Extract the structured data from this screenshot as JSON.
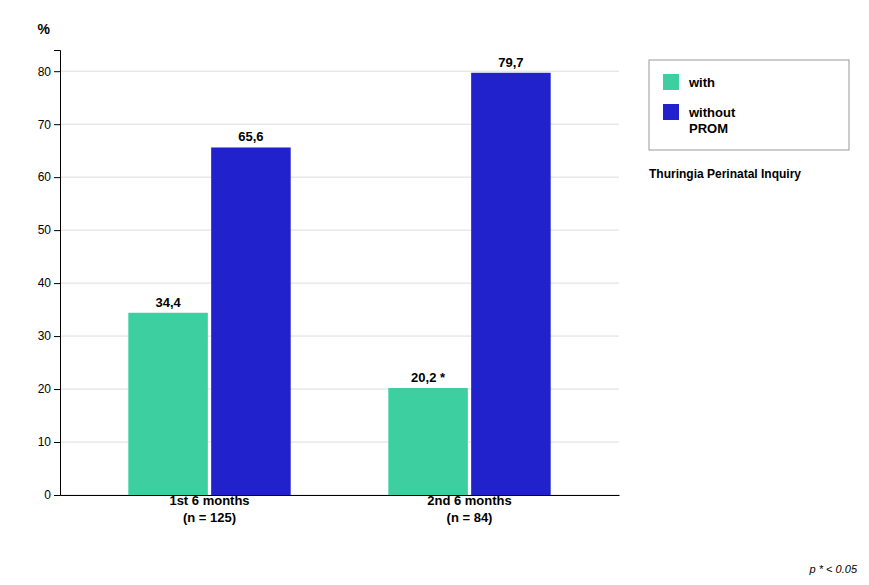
{
  "chart_data": {
    "type": "bar",
    "categories": [
      "1st 6 months\n(n = 125)",
      "2nd 6 months\n(n = 84)"
    ],
    "series": [
      {
        "name": "with",
        "color": "#3ecfa0",
        "values": [
          34.4,
          20.2
        ],
        "value_labels": [
          "34,4",
          "20,2 *"
        ]
      },
      {
        "name": "without\nPROM",
        "color": "#2222cc",
        "values": [
          65.6,
          79.7
        ],
        "value_labels": [
          "65,6",
          "79,7"
        ]
      }
    ],
    "y_label": "%",
    "ylim": [
      0,
      84
    ],
    "yticks": [
      0,
      10,
      20,
      30,
      40,
      50,
      60,
      70,
      80
    ],
    "grid": true,
    "legend": "right",
    "data_labels": true,
    "annotations": [
      "Thuringia Perinatal Inquiry",
      "p * < 0.05"
    ]
  }
}
